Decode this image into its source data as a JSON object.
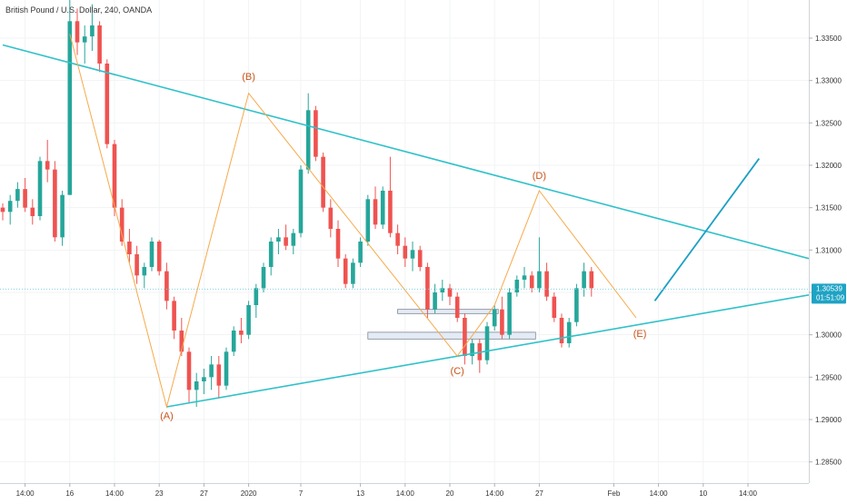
{
  "header": {
    "title": "British Pound / U.S. Dollar, 240, OANDA"
  },
  "colors": {
    "up_candle": "#26a69a",
    "down_candle": "#ef5350",
    "trendline": "#2fc1c9",
    "wave_line": "#f7a94a",
    "wave_label": "#c9541a",
    "price_tag": "#1fa3c4",
    "projection_line": "#1c9fc4"
  },
  "chart_data": {
    "type": "candlestick",
    "symbol": "British Pound / U.S. Dollar",
    "interval": "240",
    "source": "OANDA",
    "y_ticks": [
      "1.33500",
      "1.33000",
      "1.32500",
      "1.32000",
      "1.31500",
      "1.31000",
      "1.30500",
      "1.30000",
      "1.29500",
      "1.29000",
      "1.28500"
    ],
    "y_tick_values": [
      1.335,
      1.33,
      1.325,
      1.32,
      1.315,
      1.31,
      1.305,
      1.3,
      1.295,
      1.29,
      1.285
    ],
    "ylim": [
      1.2825,
      1.3395
    ],
    "x_ticks": [
      "14:00",
      "16",
      "14:00",
      "23",
      "27",
      "2020",
      "7",
      "13",
      "14:00",
      "20",
      "14:00",
      "27",
      "Feb",
      "14:00",
      "10",
      "14:00"
    ],
    "x_tick_index": [
      3,
      9,
      15,
      21,
      27,
      33,
      40,
      48,
      54,
      60,
      66,
      72,
      82,
      88,
      94,
      100
    ],
    "x_total_bars": 103,
    "current_price": "1.30539",
    "countdown": "01:51:09",
    "candles": [
      [
        1.315,
        1.3155,
        1.3135,
        1.3145
      ],
      [
        1.3145,
        1.3165,
        1.313,
        1.3158
      ],
      [
        1.3158,
        1.318,
        1.315,
        1.3172
      ],
      [
        1.3172,
        1.3185,
        1.3145,
        1.315
      ],
      [
        1.315,
        1.316,
        1.313,
        1.314
      ],
      [
        1.314,
        1.321,
        1.3135,
        1.3205
      ],
      [
        1.3205,
        1.323,
        1.318,
        1.3195
      ],
      [
        1.3195,
        1.3205,
        1.311,
        1.3115
      ],
      [
        1.3115,
        1.317,
        1.3105,
        1.3165
      ],
      [
        1.3165,
        1.3395,
        1.3165,
        1.337
      ],
      [
        1.337,
        1.3385,
        1.333,
        1.3345
      ],
      [
        1.3345,
        1.3365,
        1.332,
        1.3352
      ],
      [
        1.3352,
        1.339,
        1.3335,
        1.3365
      ],
      [
        1.3365,
        1.337,
        1.331,
        1.332
      ],
      [
        1.332,
        1.3325,
        1.322,
        1.3225
      ],
      [
        1.3225,
        1.323,
        1.314,
        1.315
      ],
      [
        1.315,
        1.316,
        1.3105,
        1.311
      ],
      [
        1.311,
        1.3125,
        1.3085,
        1.3095
      ],
      [
        1.3095,
        1.3105,
        1.306,
        1.307
      ],
      [
        1.307,
        1.3085,
        1.3055,
        1.308
      ],
      [
        1.308,
        1.3115,
        1.3075,
        1.311
      ],
      [
        1.311,
        1.3112,
        1.307,
        1.3075
      ],
      [
        1.3075,
        1.3085,
        1.303,
        1.304
      ],
      [
        1.304,
        1.3045,
        1.2995,
        1.3005
      ],
      [
        1.3005,
        1.302,
        1.2975,
        1.298
      ],
      [
        1.298,
        1.2985,
        1.292,
        1.2935
      ],
      [
        1.2935,
        1.2955,
        1.2915,
        1.2945
      ],
      [
        1.2945,
        1.296,
        1.293,
        1.295
      ],
      [
        1.295,
        1.2975,
        1.2935,
        1.2965
      ],
      [
        1.2965,
        1.2975,
        1.2925,
        1.294
      ],
      [
        1.294,
        1.2985,
        1.2935,
        1.298
      ],
      [
        1.298,
        1.301,
        1.2975,
        1.3005
      ],
      [
        1.3005,
        1.302,
        1.299,
        1.3
      ],
      [
        1.3,
        1.304,
        1.2995,
        1.3035
      ],
      [
        1.3035,
        1.306,
        1.302,
        1.3055
      ],
      [
        1.3055,
        1.3085,
        1.305,
        1.308
      ],
      [
        1.308,
        1.3115,
        1.307,
        1.311
      ],
      [
        1.311,
        1.3125,
        1.3095,
        1.3115
      ],
      [
        1.3115,
        1.313,
        1.31,
        1.3105
      ],
      [
        1.3105,
        1.3125,
        1.3095,
        1.312
      ],
      [
        1.312,
        1.32,
        1.3115,
        1.3195
      ],
      [
        1.3195,
        1.3285,
        1.319,
        1.3265
      ],
      [
        1.3265,
        1.327,
        1.3205,
        1.321
      ],
      [
        1.321,
        1.3215,
        1.3145,
        1.315
      ],
      [
        1.315,
        1.316,
        1.3115,
        1.3125
      ],
      [
        1.3125,
        1.3135,
        1.308,
        1.309
      ],
      [
        1.309,
        1.3095,
        1.3055,
        1.306
      ],
      [
        1.306,
        1.309,
        1.3055,
        1.3085
      ],
      [
        1.3085,
        1.3115,
        1.308,
        1.311
      ],
      [
        1.311,
        1.3165,
        1.3105,
        1.316
      ],
      [
        1.316,
        1.3175,
        1.3125,
        1.313
      ],
      [
        1.313,
        1.3175,
        1.3125,
        1.317
      ],
      [
        1.317,
        1.321,
        1.3115,
        1.312
      ],
      [
        1.312,
        1.313,
        1.3095,
        1.3105
      ],
      [
        1.3105,
        1.3115,
        1.308,
        1.309
      ],
      [
        1.309,
        1.311,
        1.3075,
        1.31
      ],
      [
        1.31,
        1.3105,
        1.3075,
        1.308
      ],
      [
        1.308,
        1.3085,
        1.302,
        1.303
      ],
      [
        1.303,
        1.306,
        1.3025,
        1.305
      ],
      [
        1.305,
        1.3065,
        1.304,
        1.3055
      ],
      [
        1.3055,
        1.306,
        1.3035,
        1.3045
      ],
      [
        1.3045,
        1.305,
        1.3015,
        1.302
      ],
      [
        1.302,
        1.3025,
        1.2965,
        1.2975
      ],
      [
        1.2975,
        1.2995,
        1.2965,
        1.299
      ],
      [
        1.299,
        1.2995,
        1.2955,
        1.297
      ],
      [
        1.297,
        1.3015,
        1.2965,
        1.301
      ],
      [
        1.301,
        1.3035,
        1.3005,
        1.303
      ],
      [
        1.303,
        1.3045,
        1.2995,
        1.3
      ],
      [
        1.3,
        1.3055,
        1.2995,
        1.305
      ],
      [
        1.305,
        1.307,
        1.3045,
        1.3065
      ],
      [
        1.3065,
        1.308,
        1.3055,
        1.307
      ],
      [
        1.307,
        1.3075,
        1.305,
        1.3055
      ],
      [
        1.3055,
        1.3115,
        1.305,
        1.3075
      ],
      [
        1.3075,
        1.3085,
        1.304,
        1.3045
      ],
      [
        1.3045,
        1.305,
        1.3015,
        1.302
      ],
      [
        1.302,
        1.3025,
        1.2985,
        1.299
      ],
      [
        1.299,
        1.302,
        1.2985,
        1.3015
      ],
      [
        1.3015,
        1.306,
        1.301,
        1.3055
      ],
      [
        1.3055,
        1.3085,
        1.3045,
        1.3075
      ],
      [
        1.3075,
        1.308,
        1.3045,
        1.3055
      ]
    ],
    "trendlines": [
      {
        "from": [
          0,
          1.3342
        ],
        "to": [
          103,
          1.309
        ]
      },
      {
        "from": [
          22,
          1.2915
        ],
        "to": [
          103,
          1.3047
        ]
      }
    ],
    "wave_path": [
      [
        9,
        1.3355
      ],
      [
        22,
        1.2915
      ],
      [
        33,
        1.3285
      ],
      [
        61,
        1.2975
      ],
      [
        66,
        1.3035
      ],
      [
        72,
        1.317
      ],
      [
        85,
        1.302
      ]
    ],
    "wave_labels": [
      {
        "text": "(A)",
        "x": 22,
        "y": 1.2905
      },
      {
        "text": "(B)",
        "x": 33,
        "y": 1.3305
      },
      {
        "text": "(C)",
        "x": 61,
        "y": 1.2958
      },
      {
        "text": "(D)",
        "x": 72,
        "y": 1.3188
      },
      {
        "text": "(E)",
        "x": 85.5,
        "y": 1.3002
      }
    ],
    "zones": [
      {
        "x0": 53,
        "x1": 66.5,
        "y0": 1.3025,
        "y1": 1.303
      },
      {
        "x0": 49,
        "x1": 71.5,
        "y0": 1.2995,
        "y1": 1.3003
      }
    ],
    "projection_line": {
      "from": [
        87.5,
        1.304
      ],
      "to": [
        101.5,
        1.3208
      ]
    }
  }
}
